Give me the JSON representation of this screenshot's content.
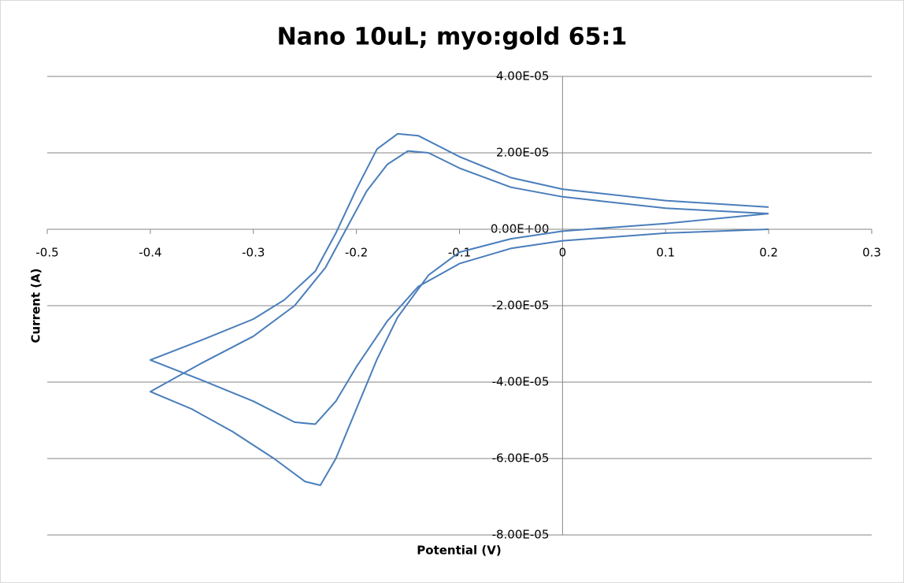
{
  "chart_data": {
    "type": "line",
    "title": "Nano 10uL; myo:gold 65:1",
    "x_label": "Potential (V)",
    "y_label": "Current (A)",
    "xlim": [
      -0.5,
      0.3
    ],
    "xticks": [
      -0.5,
      -0.4,
      -0.3,
      -0.2,
      -0.1,
      0,
      0.1,
      0.2,
      0.3
    ],
    "ylim": [
      -8e-05,
      4e-05
    ],
    "yticks": [
      {
        "value": -8e-05,
        "label": "-8.00E-05"
      },
      {
        "value": -6e-05,
        "label": "-6.00E-05"
      },
      {
        "value": -4e-05,
        "label": "-4.00E-05"
      },
      {
        "value": -2e-05,
        "label": "-2.00E-05"
      },
      {
        "value": 0,
        "label": "0.00E+00"
      },
      {
        "value": 2e-05,
        "label": "2.00E-05"
      },
      {
        "value": 4e-05,
        "label": "4.00E-05"
      }
    ],
    "grid": true,
    "series": [
      {
        "color": "#4a7ebb",
        "x": [
          0.2,
          0.1,
          0,
          -0.05,
          -0.1,
          -0.14,
          -0.17,
          -0.2,
          -0.22,
          -0.24,
          -0.26,
          -0.3,
          -0.35,
          -0.4,
          -0.35,
          -0.3,
          -0.27,
          -0.24,
          -0.22,
          -0.2,
          -0.18,
          -0.16,
          -0.14,
          -0.1,
          -0.05,
          0,
          0.1,
          0.2
        ],
        "values": [
          0,
          -1e-06,
          -3e-06,
          -5e-06,
          -9e-06,
          -1.5e-05,
          -2.4e-05,
          -3.6e-05,
          -4.5e-05,
          -5.1e-05,
          -5.05e-05,
          -4.5e-05,
          -3.95e-05,
          -3.42e-05,
          -2.9e-05,
          -2.35e-05,
          -1.85e-05,
          -1.1e-05,
          -1e-06,
          1.05e-05,
          2.1e-05,
          2.5e-05,
          2.45e-05,
          1.9e-05,
          1.35e-05,
          1.05e-05,
          7.5e-06,
          5.8e-06
        ]
      },
      {
        "color": "#4a7ebb",
        "x": [
          0.2,
          0.1,
          0,
          -0.05,
          -0.1,
          -0.13,
          -0.16,
          -0.18,
          -0.2,
          -0.22,
          -0.235,
          -0.25,
          -0.28,
          -0.32,
          -0.36,
          -0.4,
          -0.35,
          -0.3,
          -0.26,
          -0.23,
          -0.21,
          -0.19,
          -0.17,
          -0.15,
          -0.13,
          -0.1,
          -0.05,
          0,
          0.1,
          0.2
        ],
        "values": [
          4.1e-06,
          1.5e-06,
          -5e-07,
          -2.5e-06,
          -6e-06,
          -1.2e-05,
          -2.3e-05,
          -3.4e-05,
          -4.7e-05,
          -6e-05,
          -6.7e-05,
          -6.6e-05,
          -6e-05,
          -5.3e-05,
          -4.7e-05,
          -4.25e-05,
          -3.5e-05,
          -2.8e-05,
          -2e-05,
          -1e-05,
          0,
          1e-05,
          1.7e-05,
          2.05e-05,
          2e-05,
          1.6e-05,
          1.1e-05,
          8.5e-06,
          5.5e-06,
          4.1e-06
        ]
      }
    ]
  }
}
